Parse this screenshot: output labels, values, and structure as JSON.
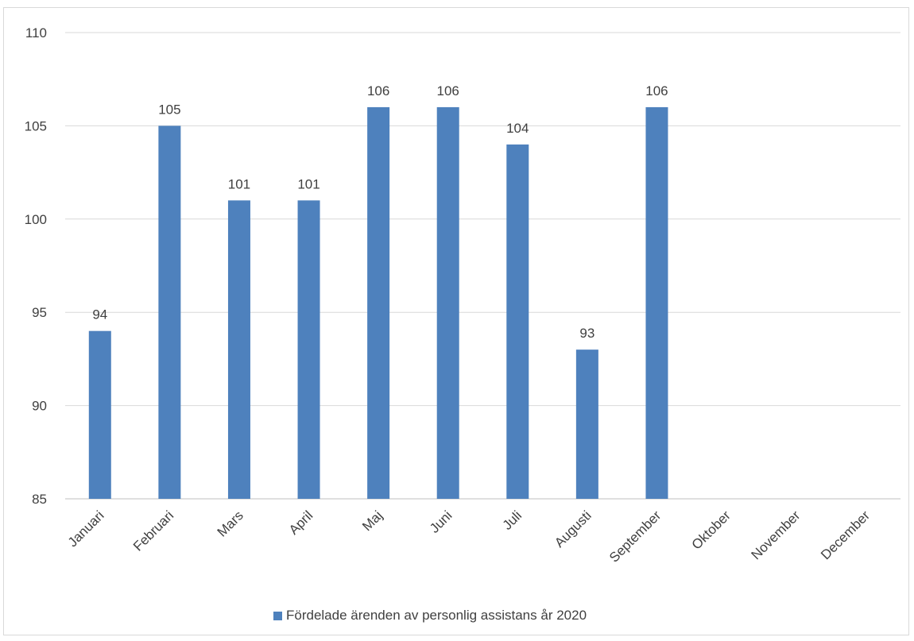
{
  "chart_data": {
    "type": "bar",
    "categories": [
      "Januari",
      "Februari",
      "Mars",
      "April",
      "Maj",
      "Juni",
      "Juli",
      "Augusti",
      "September",
      "Oktober",
      "November",
      "December"
    ],
    "series": [
      {
        "name": "Fördelade ärenden av personlig assistans år 2020",
        "values": [
          94,
          105,
          101,
          101,
          106,
          106,
          104,
          93,
          106,
          null,
          null,
          null
        ],
        "color": "#4e81bd"
      }
    ],
    "yticks": [
      85,
      90,
      95,
      100,
      105,
      110
    ],
    "ylim": [
      85,
      110
    ],
    "grid": true,
    "legend": "bottom",
    "data_labels": true
  }
}
